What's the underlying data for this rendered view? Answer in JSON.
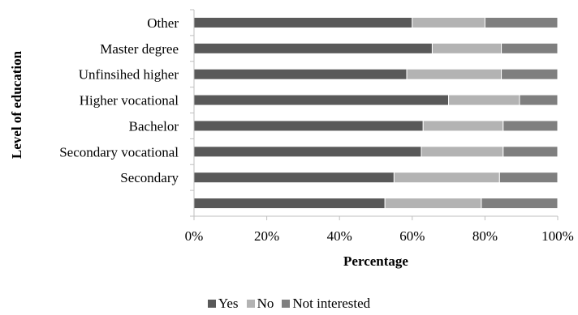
{
  "chart_data": {
    "type": "bar",
    "orientation": "horizontal",
    "stacked": "percent",
    "categories": [
      "",
      "Secondary",
      "Secondary vocational",
      "Bachelor",
      "Higher vocational",
      "Unfinsihed higher",
      "Master degree",
      "Other"
    ],
    "series": [
      {
        "name": "Yes",
        "color": "#595959",
        "values": [
          52.5,
          55,
          62.5,
          63,
          70,
          58.5,
          65.5,
          60
        ]
      },
      {
        "name": "No",
        "color": "#b3b3b3",
        "values": [
          26.5,
          29,
          22.5,
          22,
          19.5,
          26,
          19,
          20
        ]
      },
      {
        "name": "Not interested",
        "color": "#7f7f7f",
        "values": [
          21,
          16,
          15,
          15,
          10.5,
          15.5,
          15.5,
          20
        ]
      }
    ],
    "xlabel": "Percentage",
    "ylabel": "Level of education",
    "xlim": [
      0,
      100
    ],
    "xticks": [
      "0%",
      "20%",
      "40%",
      "60%",
      "80%",
      "100%"
    ],
    "grid": false,
    "legend_position": "bottom"
  }
}
